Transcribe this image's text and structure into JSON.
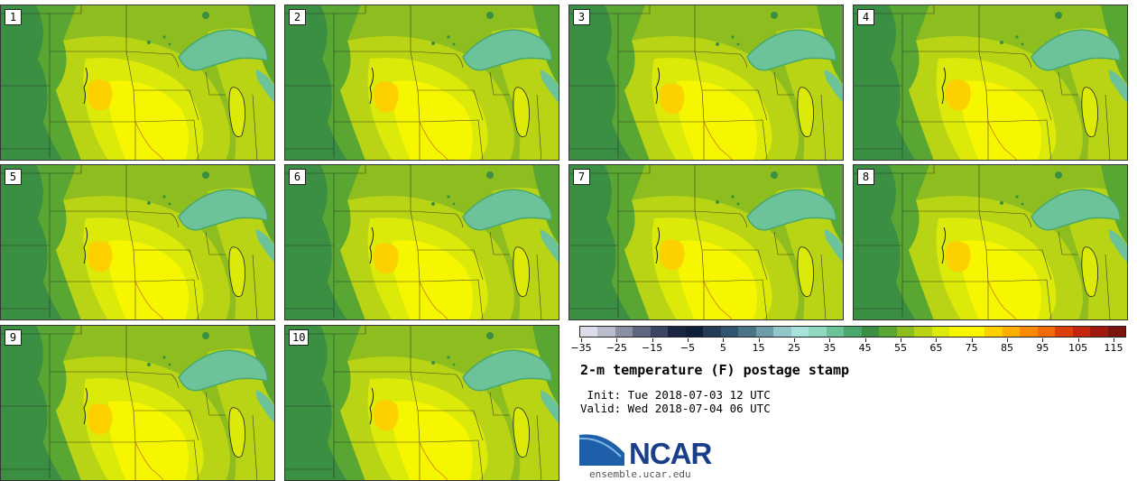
{
  "figure": {
    "title": "2-m temperature (F) postage stamp",
    "init": "Init: Tue 2018-07-03 12 UTC",
    "valid": "Valid: Wed 2018-07-04 06 UTC",
    "logo_text": "NCAR",
    "site": "ensemble.ucar.edu"
  },
  "members": [
    "1",
    "2",
    "3",
    "4",
    "5",
    "6",
    "7",
    "8",
    "9",
    "10"
  ],
  "colorbar": {
    "unit": "F",
    "ticks": [
      "-35",
      "-25",
      "-15",
      "-5",
      "5",
      "15",
      "25",
      "35",
      "45",
      "55",
      "65",
      "75",
      "85",
      "95",
      "105",
      "115"
    ],
    "colors": [
      "#dcdde8",
      "#b9bccb",
      "#8a8fa3",
      "#5f6780",
      "#3a4662",
      "#1a2541",
      "#0f1f38",
      "#243c57",
      "#33546e",
      "#4b7489",
      "#6e9ca9",
      "#93c6c9",
      "#a8e2dc",
      "#8fd7bf",
      "#6cc39a",
      "#4aa86c",
      "#3b8f43",
      "#5aa632",
      "#8dbd1f",
      "#b8d414",
      "#dcea0a",
      "#f6f600",
      "#fdf400",
      "#fdd000",
      "#fdb000",
      "#fb8a00",
      "#f26a00",
      "#de3e0a",
      "#c2260e",
      "#a01a10",
      "#7a1410"
    ]
  },
  "map_palette": {
    "water": "#6cc39a",
    "water_deep": "#4aa86c",
    "forest": "#3b8f43",
    "cool": "#5aa632",
    "mild": "#8dbd1f",
    "warm": "#b8d414",
    "warmer": "#dcea0a",
    "hot": "#f6f600",
    "hotter": "#fdd000",
    "border": "#222222",
    "river": "#c0392b"
  }
}
